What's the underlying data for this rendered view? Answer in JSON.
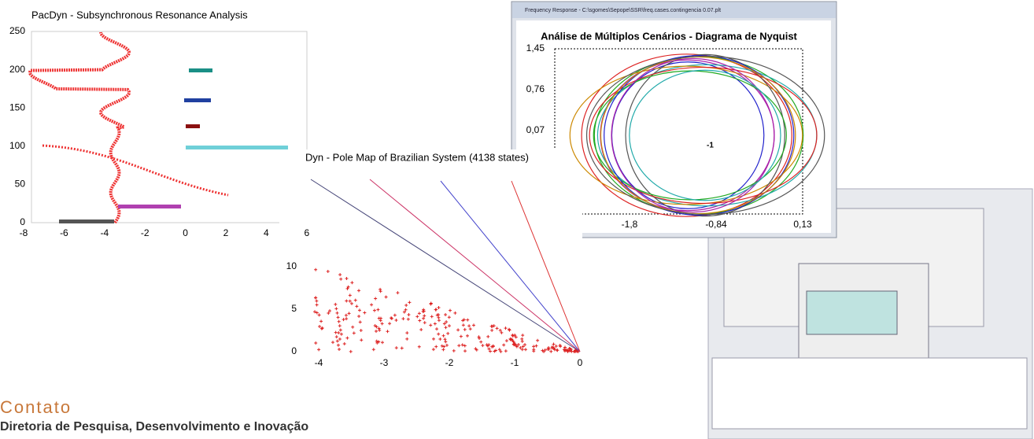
{
  "panel_1": {
    "title": "PacDyn - Subsynchronous Resonance Analysis",
    "y_ticks": [
      "250",
      "200",
      "150",
      "100",
      "50",
      "0"
    ],
    "x_ticks": [
      "-8",
      "-6",
      "-4",
      "-2",
      "0",
      "2",
      "4",
      "6"
    ]
  },
  "panel_2": {
    "title": "Dyn - Pole Map of Brazilian System (4138 states)",
    "y_ticks": [
      "10",
      "5",
      "0"
    ],
    "x_ticks": [
      "-4",
      "-3",
      "-2",
      "-1",
      "0"
    ]
  },
  "panel_3": {
    "window_title": "Frequency Response - C:\\sgomes\\Sepope\\SSR\\freq.cases.contingencia 0.07.plt",
    "title": "Análise de Múltiplos Cenários - Diagrama de Nyquist",
    "y_ticks": [
      "1,45",
      "0,76",
      "0,07"
    ],
    "x_ticks": [
      "-1,8",
      "-0,84",
      "0,13"
    ],
    "annotation": "-1"
  },
  "footer": {
    "heading": "Contato",
    "line": "Diretoria de Pesquisa, Desenvolvimento e Inovação"
  }
}
